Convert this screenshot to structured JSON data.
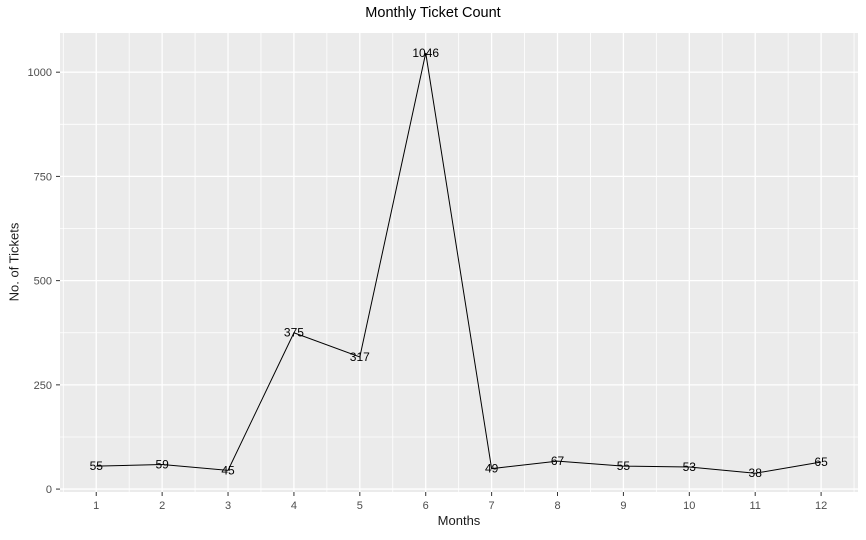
{
  "chart_data": {
    "type": "line",
    "title": "Monthly Ticket Count",
    "xlabel": "Months",
    "ylabel": "No. of Tickets",
    "x": [
      1,
      2,
      3,
      4,
      5,
      6,
      7,
      8,
      9,
      10,
      11,
      12
    ],
    "categories": [
      "1",
      "2",
      "3",
      "4",
      "5",
      "6",
      "7",
      "8",
      "9",
      "10",
      "11",
      "12"
    ],
    "values": [
      55,
      59,
      45,
      375,
      317,
      1046,
      49,
      67,
      55,
      53,
      38,
      65
    ],
    "point_labels": [
      "55",
      "59",
      "45",
      "375",
      "317",
      "1046",
      "49",
      "67",
      "55",
      "53",
      "38",
      "65"
    ],
    "yticks": [
      0,
      250,
      500,
      750,
      1000
    ],
    "ytick_labels": [
      "0",
      "250",
      "500",
      "750",
      "1000"
    ],
    "xlim": [
      0.45,
      12.56
    ],
    "ylim": [
      -7,
      1094
    ],
    "grid": "major-and-minor",
    "legend": "none",
    "colors": {
      "figure_bg": "#FFFFFF",
      "panel_bg": "#EBEBEB",
      "grid_major": "#FFFFFF",
      "grid_minor": "#FFFFFF",
      "line": "#000000",
      "point_label": "#000000",
      "tick_label": "#4D4D4D",
      "tick_mark": "#333333",
      "axis_title": "#1A1A1A",
      "title": "#000000"
    }
  }
}
